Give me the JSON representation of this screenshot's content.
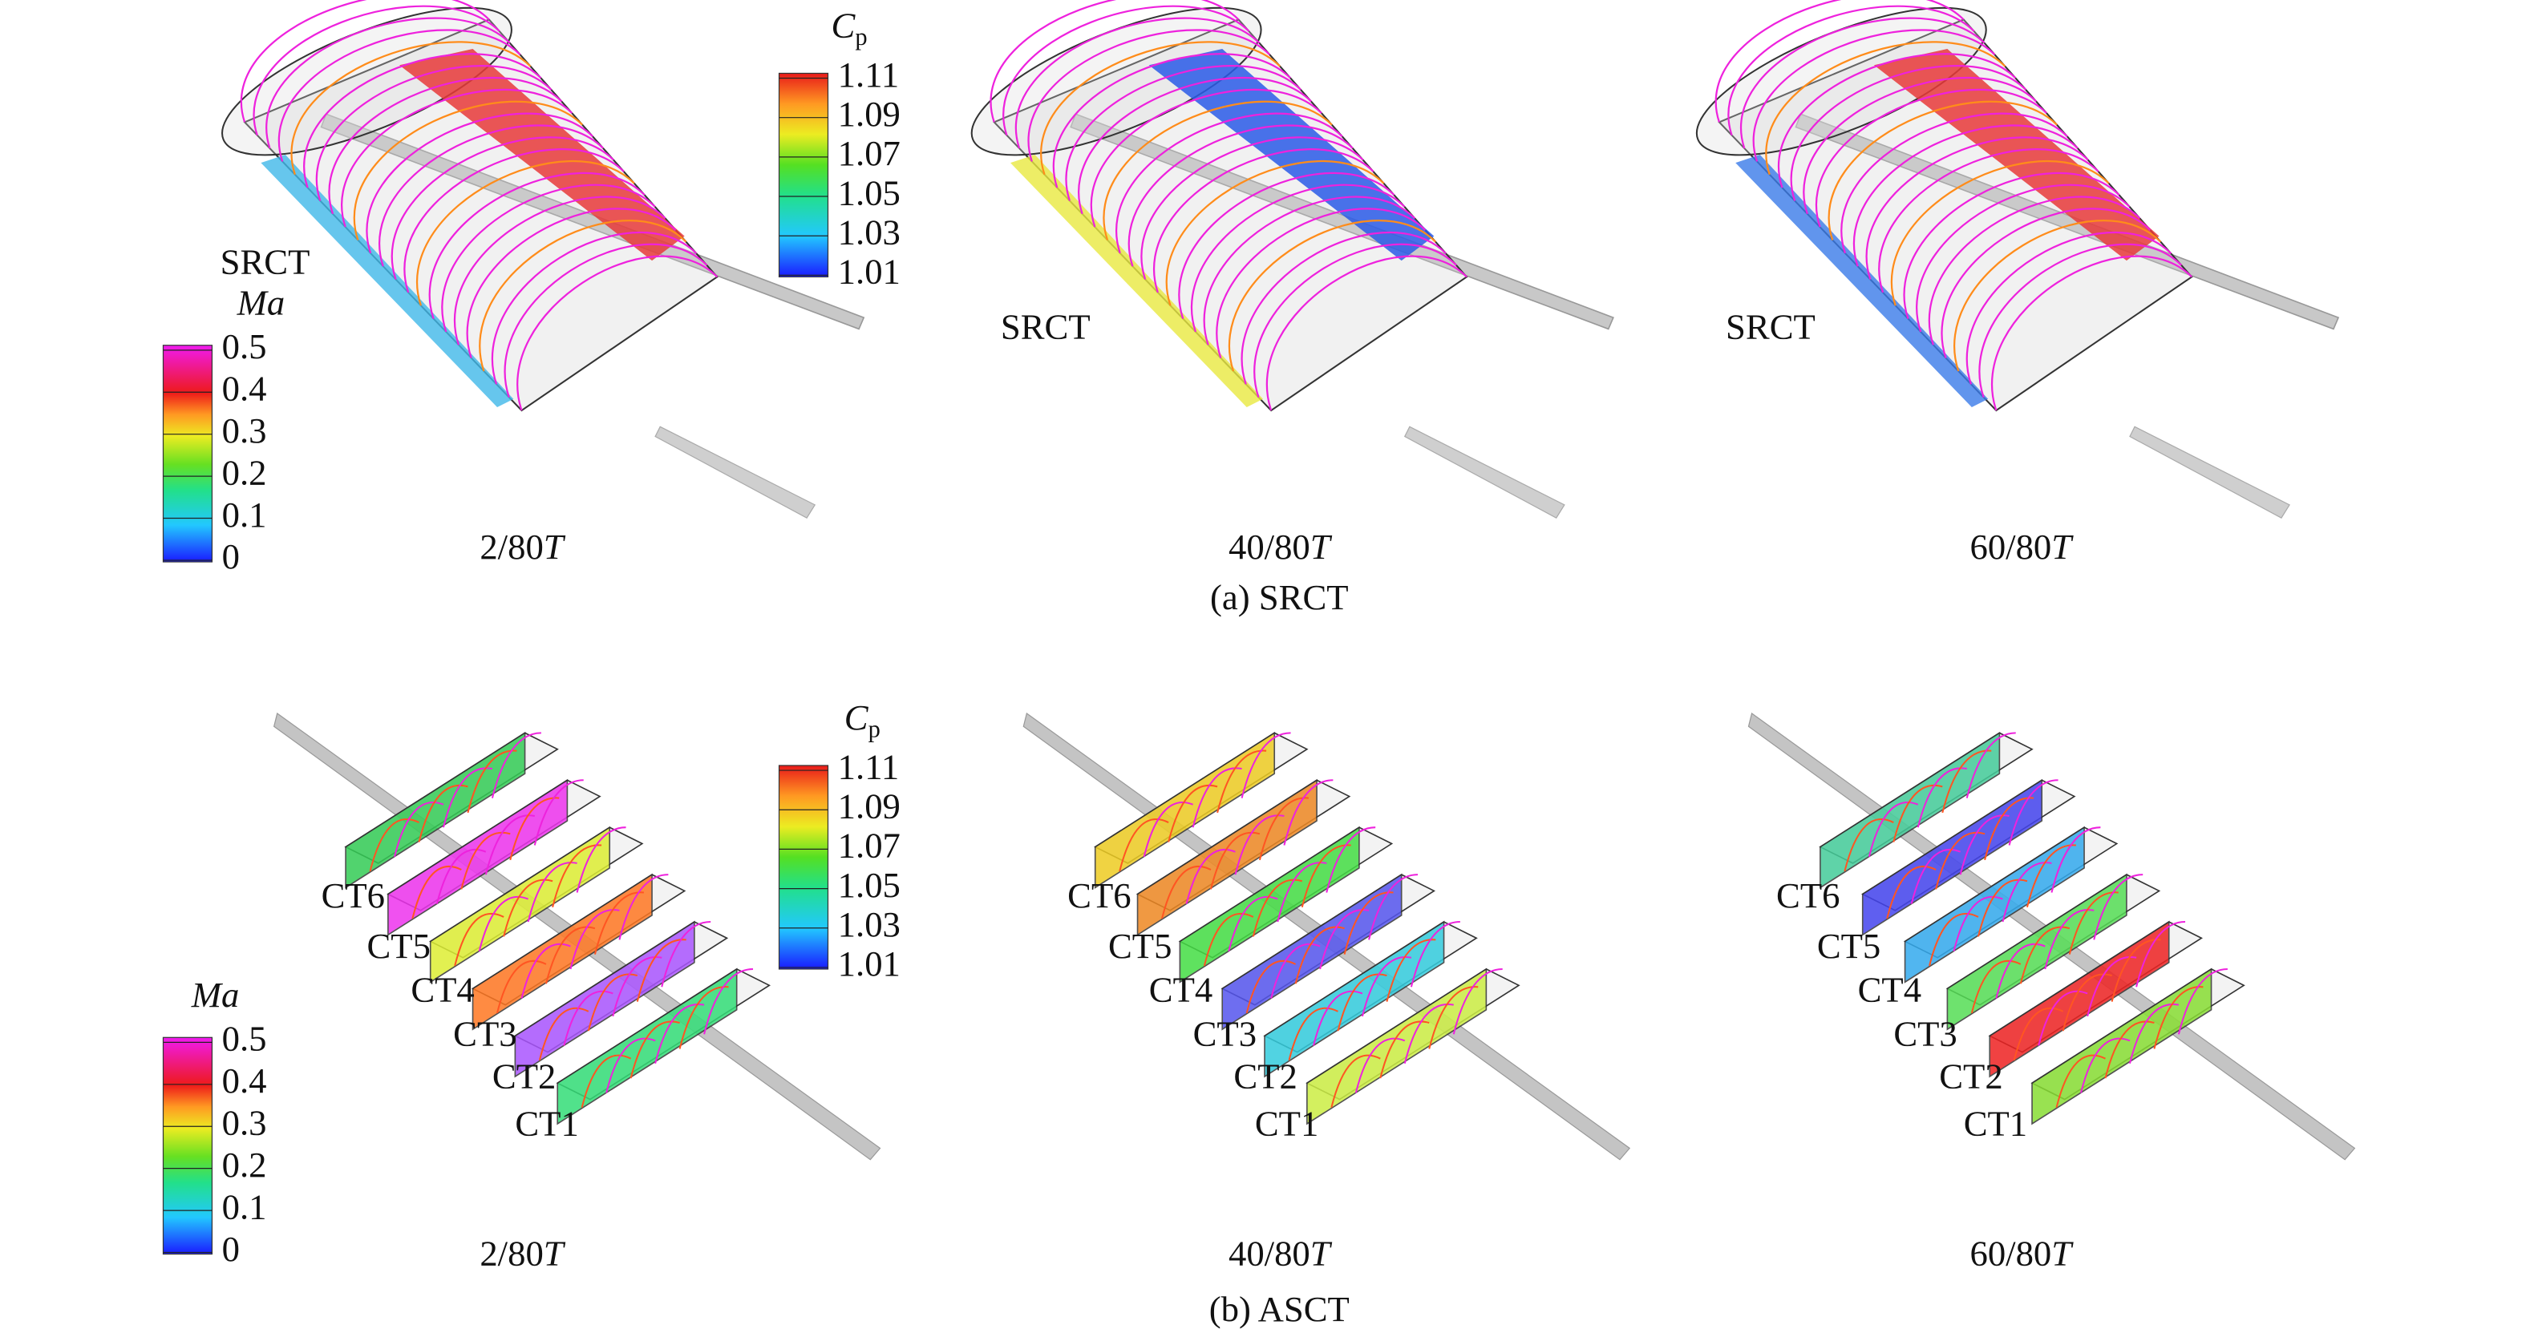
{
  "panels": [
    {
      "caption": "(a) SRCT",
      "cp_legend": {
        "title": "C",
        "subscript": "p",
        "ticks": [
          "1.11",
          "1.09",
          "1.07",
          "1.05",
          "1.03",
          "1.01"
        ]
      },
      "ma_legend": {
        "title": "Ma",
        "ticks": [
          "0.5",
          "0.4",
          "0.3",
          "0.2",
          "0.1",
          "0"
        ]
      },
      "frames": [
        {
          "time": "2/80",
          "time_unit": "T",
          "labels": [
            "SRCT"
          ]
        },
        {
          "time": "40/80",
          "time_unit": "T",
          "labels": [
            "SRCT"
          ]
        },
        {
          "time": "60/80",
          "time_unit": "T",
          "labels": [
            "SRCT"
          ]
        }
      ]
    },
    {
      "caption": "(b) ASCT",
      "cp_legend": {
        "title": "C",
        "subscript": "p",
        "ticks": [
          "1.11",
          "1.09",
          "1.07",
          "1.05",
          "1.03",
          "1.01"
        ]
      },
      "ma_legend": {
        "title": "Ma",
        "ticks": [
          "0.5",
          "0.4",
          "0.3",
          "0.2",
          "0.1",
          "0"
        ]
      },
      "frames": [
        {
          "time": "2/80",
          "time_unit": "T",
          "labels": [
            "CT6",
            "CT5",
            "CT4",
            "CT3",
            "CT2",
            "CT1"
          ]
        },
        {
          "time": "40/80",
          "time_unit": "T",
          "labels": [
            "CT6",
            "CT5",
            "CT4",
            "CT3",
            "CT2",
            "CT1"
          ]
        },
        {
          "time": "60/80",
          "time_unit": "T",
          "labels": [
            "CT6",
            "CT5",
            "CT4",
            "CT3",
            "CT2",
            "CT1"
          ]
        }
      ]
    }
  ]
}
